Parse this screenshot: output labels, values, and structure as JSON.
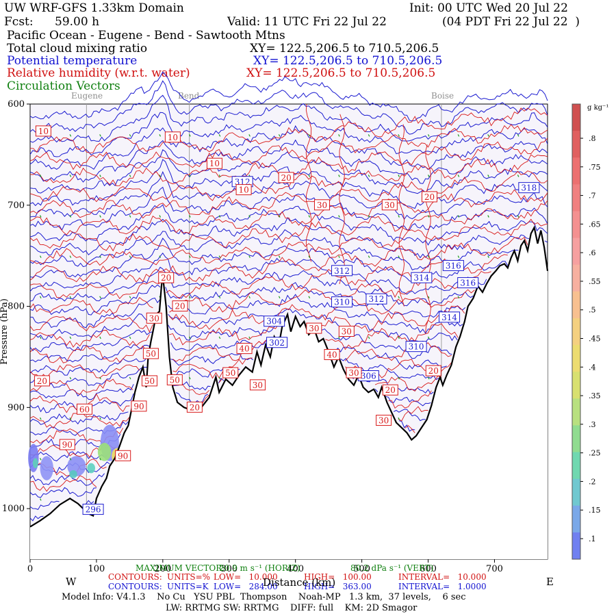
{
  "header": {
    "title": "UW WRF-GFS 1.33km Domain",
    "init": "Init: 00 UTC Wed 20 Jul 22",
    "fcst_label": "Fcst:",
    "fcst_value": "59.00 h",
    "valid": "Valid: 11 UTC Fri 22 Jul 22",
    "valid_local": "(04 PDT Fri 22 Jul 22  )",
    "region": "Pacific Ocean - Eugene - Bend - Sawtooth Mtns"
  },
  "fields": [
    {
      "name": "Total cloud mixing ratio",
      "xy": "XY= 122.5,206.5 to 710.5,206.5",
      "color": "#000000"
    },
    {
      "name": "Potential temperature",
      "xy": "XY= 122.5,206.5 to 710.5,206.5",
      "color": "#1010d0"
    },
    {
      "name": "Relative humidity (w.r.t. water)",
      "xy": "XY= 122.5,206.5 to 710.5,206.5",
      "color": "#d01010"
    },
    {
      "name": "Circulation Vectors",
      "xy": "",
      "color": "#108010"
    }
  ],
  "places": [
    "Eugene",
    "Bend",
    "Boise"
  ],
  "colorbar": {
    "unit": "g kg⁻¹",
    "labels": [
      ".8",
      ".75",
      ".7",
      ".65",
      ".6",
      ".55",
      ".5",
      ".45",
      ".4",
      ".35",
      ".3",
      ".25",
      ".2",
      ".15",
      ".1"
    ]
  },
  "chart_data": {
    "type": "line",
    "x_ticks": [
      "0",
      "100",
      "200",
      "300",
      "400",
      "500",
      "600",
      "700"
    ],
    "y_ticks": [
      "600",
      "700",
      "800",
      "900",
      "1000"
    ],
    "xlim": [
      0,
      780
    ],
    "ylim": [
      1050,
      600
    ],
    "xlabel": "Distance (km)",
    "ylabel": "Pressure (hPa)",
    "left_dir": "W",
    "right_dir": "E",
    "place_positions_km": [
      {
        "name": "Eugene",
        "x": 85
      },
      {
        "name": "Bend",
        "x": 240
      },
      {
        "name": "Boise",
        "x": 620
      }
    ],
    "terrain": [
      [
        0,
        1018
      ],
      [
        15,
        1012
      ],
      [
        30,
        1005
      ],
      [
        45,
        996
      ],
      [
        60,
        990
      ],
      [
        72,
        995
      ],
      [
        80,
        1000
      ],
      [
        88,
        1005
      ],
      [
        95,
        1007
      ],
      [
        100,
        990
      ],
      [
        108,
        978
      ],
      [
        115,
        970
      ],
      [
        120,
        958
      ],
      [
        128,
        950
      ],
      [
        135,
        938
      ],
      [
        142,
        925
      ],
      [
        148,
        918
      ],
      [
        152,
        905
      ],
      [
        158,
        885
      ],
      [
        164,
        870
      ],
      [
        170,
        860
      ],
      [
        175,
        880
      ],
      [
        178,
        850
      ],
      [
        182,
        835
      ],
      [
        186,
        822
      ],
      [
        190,
        808
      ],
      [
        195,
        805
      ],
      [
        198,
        780
      ],
      [
        200,
        770
      ],
      [
        205,
        800
      ],
      [
        210,
        850
      ],
      [
        215,
        880
      ],
      [
        222,
        895
      ],
      [
        232,
        900
      ],
      [
        245,
        903
      ],
      [
        258,
        900
      ],
      [
        270,
        890
      ],
      [
        280,
        870
      ],
      [
        285,
        885
      ],
      [
        295,
        872
      ],
      [
        305,
        878
      ],
      [
        315,
        868
      ],
      [
        325,
        860
      ],
      [
        335,
        865
      ],
      [
        342,
        845
      ],
      [
        348,
        858
      ],
      [
        355,
        838
      ],
      [
        362,
        850
      ],
      [
        368,
        830
      ],
      [
        375,
        838
      ],
      [
        380,
        820
      ],
      [
        388,
        808
      ],
      [
        393,
        825
      ],
      [
        400,
        810
      ],
      [
        407,
        820
      ],
      [
        413,
        815
      ],
      [
        420,
        828
      ],
      [
        428,
        822
      ],
      [
        435,
        835
      ],
      [
        442,
        832
      ],
      [
        450,
        845
      ],
      [
        458,
        860
      ],
      [
        465,
        850
      ],
      [
        472,
        862
      ],
      [
        480,
        872
      ],
      [
        488,
        878
      ],
      [
        495,
        868
      ],
      [
        502,
        880
      ],
      [
        510,
        885
      ],
      [
        518,
        882
      ],
      [
        525,
        890
      ],
      [
        530,
        880
      ],
      [
        538,
        895
      ],
      [
        545,
        905
      ],
      [
        552,
        915
      ],
      [
        560,
        920
      ],
      [
        568,
        925
      ],
      [
        575,
        932
      ],
      [
        582,
        928
      ],
      [
        590,
        920
      ],
      [
        598,
        912
      ],
      [
        605,
        898
      ],
      [
        612,
        880
      ],
      [
        618,
        870
      ],
      [
        622,
        878
      ],
      [
        628,
        868
      ],
      [
        635,
        858
      ],
      [
        642,
        840
      ],
      [
        648,
        830
      ],
      [
        655,
        815
      ],
      [
        660,
        800
      ],
      [
        668,
        792
      ],
      [
        675,
        780
      ],
      [
        682,
        786
      ],
      [
        688,
        778
      ],
      [
        695,
        770
      ],
      [
        702,
        765
      ],
      [
        708,
        760
      ],
      [
        715,
        758
      ],
      [
        720,
        762
      ],
      [
        725,
        752
      ],
      [
        730,
        745
      ],
      [
        735,
        755
      ],
      [
        740,
        740
      ],
      [
        745,
        735
      ],
      [
        750,
        745
      ],
      [
        755,
        728
      ],
      [
        760,
        722
      ],
      [
        765,
        738
      ],
      [
        770,
        725
      ],
      [
        775,
        742
      ],
      [
        780,
        765
      ]
    ],
    "theta_contours_labels": [
      {
        "label": "312",
        "x": 320,
        "p": 677
      },
      {
        "label": "312",
        "x": 470,
        "p": 765
      },
      {
        "label": "310",
        "x": 470,
        "p": 796
      },
      {
        "label": "312",
        "x": 522,
        "p": 793
      },
      {
        "label": "314",
        "x": 590,
        "p": 772
      },
      {
        "label": "316",
        "x": 638,
        "p": 760
      },
      {
        "label": "316",
        "x": 660,
        "p": 777
      },
      {
        "label": "314",
        "x": 632,
        "p": 811
      },
      {
        "label": "310",
        "x": 582,
        "p": 840
      },
      {
        "label": "318",
        "x": 752,
        "p": 683
      },
      {
        "label": "306",
        "x": 510,
        "p": 869
      },
      {
        "label": "304",
        "x": 368,
        "p": 815
      },
      {
        "label": "302",
        "x": 372,
        "p": 836
      },
      {
        "label": "296",
        "x": 95,
        "p": 1001
      }
    ],
    "rh_contour_labels": [
      {
        "label": "10",
        "x": 20,
        "p": 627
      },
      {
        "label": "10",
        "x": 215,
        "p": 633
      },
      {
        "label": "10",
        "x": 278,
        "p": 659
      },
      {
        "label": "10",
        "x": 322,
        "p": 685
      },
      {
        "label": "20",
        "x": 386,
        "p": 673
      },
      {
        "label": "30",
        "x": 440,
        "p": 700
      },
      {
        "label": "30",
        "x": 542,
        "p": 700
      },
      {
        "label": "20",
        "x": 602,
        "p": 692
      },
      {
        "label": "20",
        "x": 205,
        "p": 772
      },
      {
        "label": "20",
        "x": 226,
        "p": 800
      },
      {
        "label": "30",
        "x": 187,
        "p": 812
      },
      {
        "label": "50",
        "x": 182,
        "p": 847
      },
      {
        "label": "50",
        "x": 180,
        "p": 874
      },
      {
        "label": "50",
        "x": 218,
        "p": 873
      },
      {
        "label": "50",
        "x": 302,
        "p": 866
      },
      {
        "label": "40",
        "x": 323,
        "p": 842
      },
      {
        "label": "30",
        "x": 343,
        "p": 878
      },
      {
        "label": "30",
        "x": 428,
        "p": 822
      },
      {
        "label": "40",
        "x": 455,
        "p": 848
      },
      {
        "label": "30",
        "x": 477,
        "p": 825
      },
      {
        "label": "30",
        "x": 488,
        "p": 866
      },
      {
        "label": "20",
        "x": 543,
        "p": 883
      },
      {
        "label": "30",
        "x": 533,
        "p": 913
      },
      {
        "label": "20",
        "x": 608,
        "p": 864
      },
      {
        "label": "20",
        "x": 248,
        "p": 900
      },
      {
        "label": "20",
        "x": 18,
        "p": 874
      },
      {
        "label": "60",
        "x": 82,
        "p": 902
      },
      {
        "label": "90",
        "x": 164,
        "p": 899
      },
      {
        "label": "90",
        "x": 140,
        "p": 948
      },
      {
        "label": "90",
        "x": 56,
        "p": 937
      }
    ]
  },
  "footer": {
    "max_vector_label": "MAXIMUM VECTOR:",
    "max_vector_horiz": "20.9 m s⁻¹ (HORIZ)",
    "max_vector_vert": "80.2 dPa s⁻¹ (VERT)",
    "red_line": {
      "contours": "CONTOURS:",
      "units": "UNITS=%",
      "low": "LOW=   10.000",
      "high": "HIGH=   100.00",
      "interval": "INTERVAL=   10.000"
    },
    "blue_line": {
      "contours": "CONTOURS:",
      "units": "UNITS=K",
      "low": "LOW=   284.00",
      "high": "HIGH=   363.00",
      "interval": "INTERVAL=   1.0000"
    },
    "xaxis_title": "Distance (km)",
    "model_info": "Model Info: V4.1.3    No Cu   YSU PBL  Thompson    Noah-MP   1.3 km,  37 levels,    6 sec",
    "physics": "LW: RRTMG SW: RRTMG    DIFF: full    KM: 2D Smagor"
  }
}
